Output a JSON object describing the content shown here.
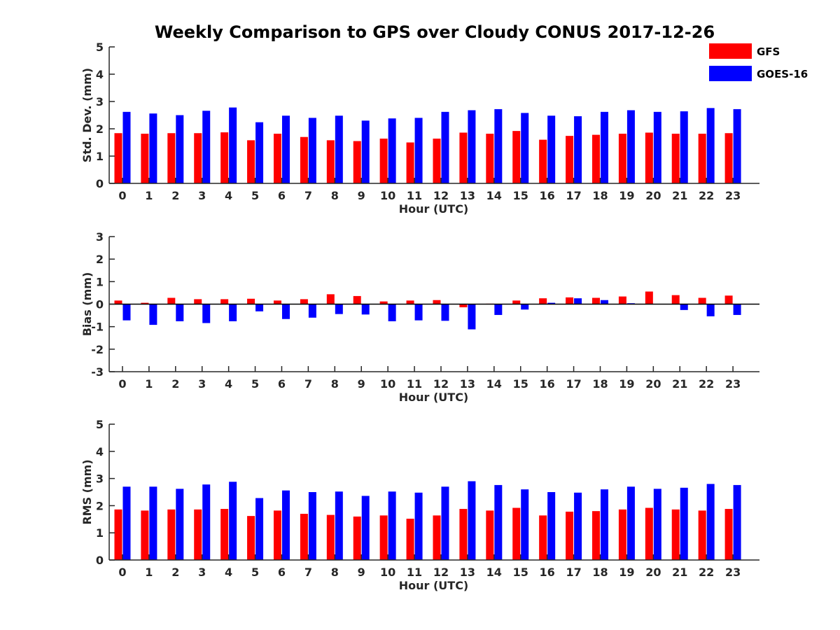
{
  "title": "Weekly Comparison to GPS over Cloudy CONUS 2017-12-26",
  "legend": [
    {
      "name": "GFS",
      "color": "#ff0000"
    },
    {
      "name": "GOES-16",
      "color": "#0000ff"
    }
  ],
  "chart_data": [
    {
      "type": "bar",
      "xlabel": "Hour (UTC)",
      "ylabel": "Std. Dev. (mm)",
      "ylim": [
        0,
        5
      ],
      "yticks": [
        0,
        1,
        2,
        3,
        4,
        5
      ],
      "categories": [
        "0",
        "1",
        "2",
        "3",
        "4",
        "5",
        "6",
        "7",
        "8",
        "9",
        "10",
        "11",
        "12",
        "13",
        "14",
        "15",
        "16",
        "17",
        "18",
        "19",
        "20",
        "21",
        "22",
        "23"
      ],
      "series": [
        {
          "name": "GFS",
          "color": "#ff0000",
          "values": [
            1.84,
            1.82,
            1.84,
            1.84,
            1.87,
            1.58,
            1.82,
            1.7,
            1.58,
            1.55,
            1.64,
            1.5,
            1.64,
            1.86,
            1.82,
            1.92,
            1.6,
            1.74,
            1.78,
            1.82,
            1.86,
            1.82,
            1.82,
            1.84
          ]
        },
        {
          "name": "GOES-16",
          "color": "#0000ff",
          "values": [
            2.62,
            2.56,
            2.5,
            2.66,
            2.78,
            2.24,
            2.48,
            2.4,
            2.48,
            2.3,
            2.38,
            2.4,
            2.62,
            2.68,
            2.72,
            2.58,
            2.48,
            2.46,
            2.62,
            2.68,
            2.62,
            2.64,
            2.76,
            2.72
          ]
        }
      ]
    },
    {
      "type": "bar",
      "xlabel": "Hour (UTC)",
      "ylabel": "Bias (mm)",
      "ylim": [
        -3,
        3
      ],
      "yticks": [
        -3,
        -2,
        -1,
        0,
        1,
        2,
        3
      ],
      "zero_line": true,
      "categories": [
        "0",
        "1",
        "2",
        "3",
        "4",
        "5",
        "6",
        "7",
        "8",
        "9",
        "10",
        "11",
        "12",
        "13",
        "14",
        "15",
        "16",
        "17",
        "18",
        "19",
        "20",
        "21",
        "22",
        "23"
      ],
      "series": [
        {
          "name": "GFS",
          "color": "#ff0000",
          "values": [
            0.16,
            0.06,
            0.28,
            0.22,
            0.22,
            0.24,
            0.16,
            0.22,
            0.44,
            0.36,
            0.12,
            0.16,
            0.18,
            -0.14,
            0.02,
            0.16,
            0.26,
            0.3,
            0.28,
            0.34,
            0.56,
            0.4,
            0.28,
            0.38
          ]
        },
        {
          "name": "GOES-16",
          "color": "#0000ff",
          "values": [
            -0.72,
            -0.92,
            -0.76,
            -0.84,
            -0.76,
            -0.32,
            -0.66,
            -0.6,
            -0.44,
            -0.46,
            -0.76,
            -0.72,
            -0.74,
            -1.12,
            -0.48,
            -0.24,
            0.06,
            0.26,
            0.18,
            0.04,
            0.0,
            -0.26,
            -0.54,
            -0.48
          ]
        }
      ]
    },
    {
      "type": "bar",
      "xlabel": "Hour (UTC)",
      "ylabel": "RMS (mm)",
      "ylim": [
        0,
        5
      ],
      "yticks": [
        0,
        1,
        2,
        3,
        4,
        5
      ],
      "categories": [
        "0",
        "1",
        "2",
        "3",
        "4",
        "5",
        "6",
        "7",
        "8",
        "9",
        "10",
        "11",
        "12",
        "13",
        "14",
        "15",
        "16",
        "17",
        "18",
        "19",
        "20",
        "21",
        "22",
        "23"
      ],
      "series": [
        {
          "name": "GFS",
          "color": "#ff0000",
          "values": [
            1.86,
            1.82,
            1.86,
            1.86,
            1.88,
            1.62,
            1.82,
            1.7,
            1.66,
            1.6,
            1.64,
            1.52,
            1.64,
            1.88,
            1.82,
            1.92,
            1.64,
            1.78,
            1.8,
            1.86,
            1.92,
            1.86,
            1.82,
            1.88
          ]
        },
        {
          "name": "GOES-16",
          "color": "#0000ff",
          "values": [
            2.7,
            2.7,
            2.62,
            2.78,
            2.88,
            2.28,
            2.56,
            2.5,
            2.52,
            2.36,
            2.52,
            2.48,
            2.7,
            2.9,
            2.76,
            2.6,
            2.5,
            2.48,
            2.6,
            2.7,
            2.62,
            2.66,
            2.8,
            2.76
          ]
        }
      ]
    }
  ]
}
